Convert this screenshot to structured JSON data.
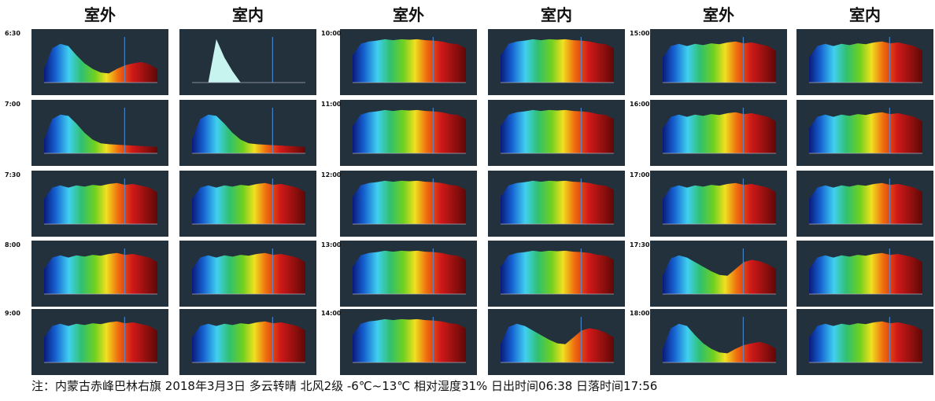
{
  "headers": [
    "室外",
    "室内",
    "室外",
    "室内",
    "室外",
    "室内"
  ],
  "time_labels": [
    [
      "6:30",
      "7:00",
      "7:30",
      "8:00",
      "9:00"
    ],
    [
      "10:00",
      "11:00",
      "12:00",
      "13:00",
      "14:00"
    ],
    [
      "15:00",
      "16:00",
      "17:00",
      "17:30",
      "18:00"
    ]
  ],
  "footer": "注：内蒙古赤峰巴林右旗  2018年3月3日  多云转晴 北风2级  -6℃~13℃ 相对湿度31%  日出时间06:38  日落时间17:56"
}
